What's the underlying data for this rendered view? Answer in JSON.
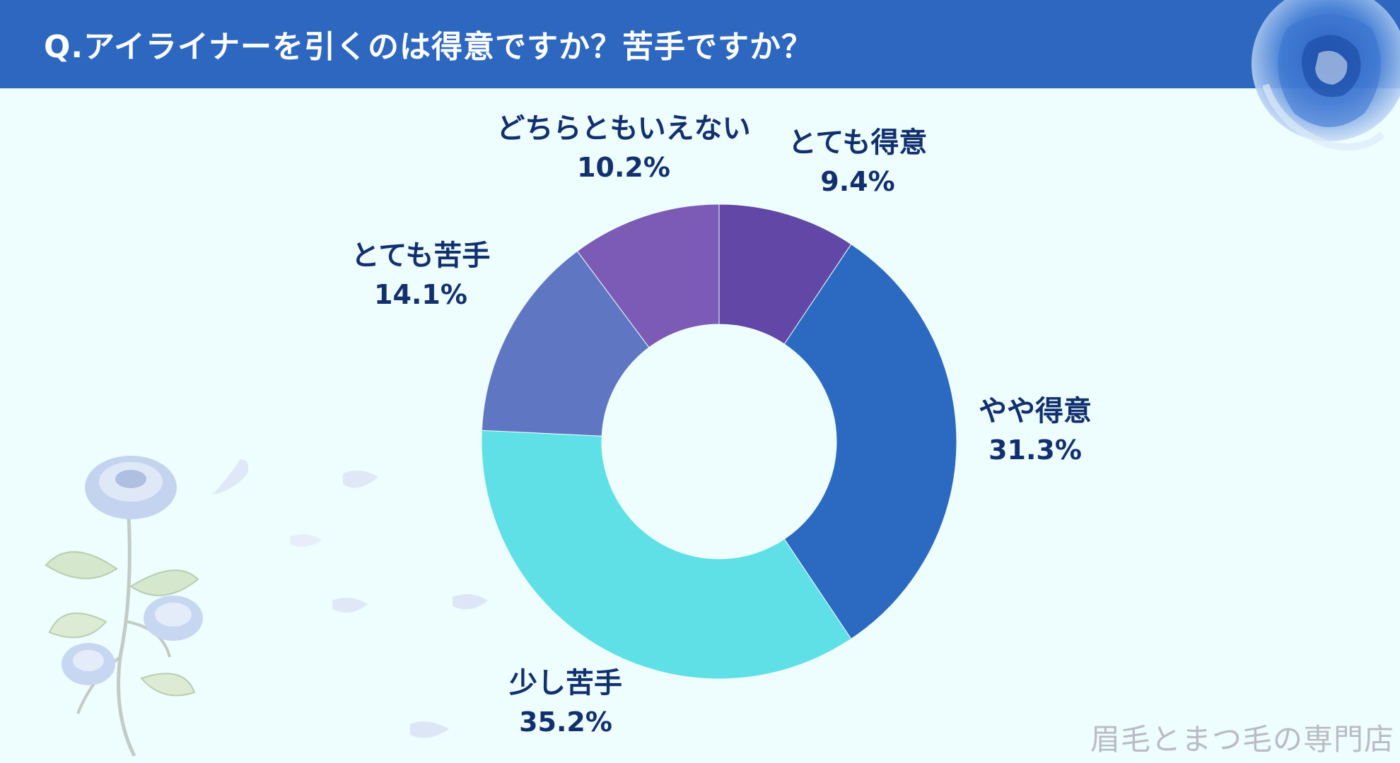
{
  "header": {
    "title": "Q.アイライナーを引くのは得意ですか？苦手ですか？"
  },
  "watermark": "眉毛とまつ毛の専門店",
  "colors": {
    "header_bg": "#2d67bf",
    "background": "#eefdfd",
    "label_text": "#12306e"
  },
  "chart_data": {
    "type": "pie",
    "donut": true,
    "title": "Q.アイライナーを引くのは得意ですか？苦手ですか？",
    "legend": "none",
    "slices": [
      {
        "label": "とても得意",
        "value": 9.4,
        "value_label": "9.4%",
        "color": "#6247a6"
      },
      {
        "label": "やや得意",
        "value": 31.3,
        "value_label": "31.3%",
        "color": "#2c69c1"
      },
      {
        "label": "少し苦手",
        "value": 35.2,
        "value_label": "35.2%",
        "color": "#5fe0e6"
      },
      {
        "label": "とても苦手",
        "value": 14.1,
        "value_label": "14.1%",
        "color": "#5f77c2"
      },
      {
        "label": "どちらともいえない",
        "value": 10.2,
        "value_label": "10.2%",
        "color": "#7b5bb5"
      }
    ]
  }
}
